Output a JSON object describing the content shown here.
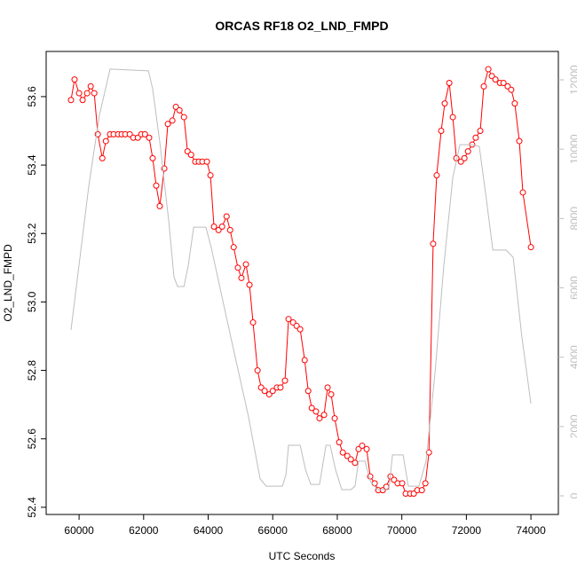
{
  "chart_data": {
    "type": "line",
    "title": "ORCAS RF18 O2_LND_FMPD",
    "xlabel": "UTC Seconds",
    "ylabel": "O2_LND_FMPD",
    "xlim": [
      58980,
      74850
    ],
    "ylim": [
      52.379,
      53.732
    ],
    "y2lim": [
      -537,
      12819
    ],
    "xticks": [
      60000,
      62000,
      64000,
      66000,
      68000,
      70000,
      72000,
      74000
    ],
    "yticks": [
      {
        "value": 52.4,
        "label": "52.4"
      },
      {
        "value": 52.6,
        "label": "52.6"
      },
      {
        "value": 52.8,
        "label": "52.8"
      },
      {
        "value": 53,
        "label": "53.0"
      },
      {
        "value": 53.2,
        "label": "53.2"
      },
      {
        "value": 53.4,
        "label": "53.4"
      },
      {
        "value": 53.6,
        "label": "53.6"
      }
    ],
    "y2ticks": [
      0,
      2000,
      4000,
      6000,
      8000,
      10000,
      12000
    ],
    "series": [
      {
        "color": "#ff0000",
        "markers": true,
        "x": [
          59750,
          59860,
          60000,
          60110,
          60250,
          60360,
          60470,
          60580,
          60720,
          60830,
          60960,
          61070,
          61210,
          61320,
          61430,
          61570,
          61680,
          61820,
          61930,
          62040,
          62170,
          62280,
          62390,
          62500,
          62640,
          62750,
          62890,
          63000,
          63110,
          63250,
          63360,
          63470,
          63600,
          63710,
          63820,
          63960,
          64070,
          64180,
          64320,
          64430,
          64570,
          64680,
          64790,
          64920,
          65030,
          65170,
          65280,
          65390,
          65530,
          65640,
          65750,
          65890,
          66000,
          66130,
          66240,
          66380,
          66490,
          66630,
          66740,
          66850,
          66990,
          67100,
          67210,
          67340,
          67450,
          67590,
          67700,
          67810,
          67920,
          68060,
          68170,
          68310,
          68420,
          68550,
          68660,
          68770,
          68910,
          69020,
          69160,
          69270,
          69410,
          69520,
          69650,
          69760,
          69870,
          70010,
          70120,
          70260,
          70370,
          70480,
          70620,
          70730,
          70840,
          70970,
          71080,
          71220,
          71330,
          71470,
          71580,
          71690,
          71830,
          71940,
          72050,
          72180,
          72290,
          72430,
          72540,
          72680,
          72790,
          72900,
          73040,
          73150,
          73280,
          73390,
          73500,
          73640,
          73750,
          74000
        ],
        "values": [
          53.59,
          53.65,
          53.61,
          53.59,
          53.61,
          53.63,
          53.61,
          53.49,
          53.42,
          53.47,
          53.49,
          53.49,
          53.49,
          53.49,
          53.49,
          53.49,
          53.48,
          53.48,
          53.49,
          53.49,
          53.48,
          53.42,
          53.34,
          53.28,
          53.39,
          53.52,
          53.53,
          53.57,
          53.56,
          53.54,
          53.44,
          53.43,
          53.41,
          53.41,
          53.41,
          53.41,
          53.37,
          53.22,
          53.21,
          53.22,
          53.25,
          53.21,
          53.16,
          53.1,
          53.07,
          53.11,
          53.05,
          52.94,
          52.8,
          52.75,
          52.74,
          52.73,
          52.74,
          52.75,
          52.75,
          52.77,
          52.95,
          52.94,
          52.93,
          52.92,
          52.83,
          52.74,
          52.69,
          52.68,
          52.66,
          52.67,
          52.75,
          52.73,
          52.66,
          52.59,
          52.56,
          52.55,
          52.54,
          52.53,
          52.57,
          52.58,
          52.57,
          52.49,
          52.47,
          52.45,
          52.45,
          52.46,
          52.49,
          52.48,
          52.47,
          52.47,
          52.44,
          52.44,
          52.44,
          52.45,
          52.45,
          52.47,
          52.56,
          53.17,
          53.37,
          53.5,
          53.58,
          53.64,
          53.54,
          53.42,
          53.41,
          53.42,
          53.44,
          53.46,
          53.48,
          53.5,
          53.63,
          53.68,
          53.66,
          53.65,
          53.64,
          53.64,
          53.63,
          53.62,
          53.58,
          53.47,
          53.32,
          53.16
        ]
      },
      {
        "color": "#bebebe",
        "axis": "y2",
        "x": [
          59750,
          60300,
          60630,
          60960,
          62150,
          62280,
          62500,
          62780,
          62940,
          63050,
          63250,
          63380,
          63550,
          63930,
          64100,
          64700,
          65250,
          65610,
          65800,
          66300,
          66410,
          66490,
          66850,
          67020,
          67180,
          67450,
          67650,
          67780,
          67950,
          68140,
          68420,
          68550,
          68660,
          68860,
          69020,
          69240,
          69600,
          69710,
          70040,
          70200,
          70530,
          70750,
          71030,
          71300,
          71580,
          71800,
          72130,
          72400,
          72620,
          72820,
          73230,
          73450,
          73720,
          74000
        ],
        "values": [
          4785,
          8930,
          10980,
          12310,
          12260,
          11740,
          10210,
          7910,
          6320,
          6040,
          6040,
          6630,
          7750,
          7750,
          7140,
          4580,
          2280,
          490,
          280,
          280,
          610,
          1460,
          1460,
          740,
          330,
          330,
          1460,
          1460,
          740,
          180,
          180,
          280,
          1000,
          1000,
          430,
          180,
          180,
          1180,
          1180,
          280,
          280,
          1000,
          3560,
          6630,
          9190,
          10130,
          10130,
          10080,
          8550,
          7090,
          7090,
          6880,
          4580,
          2660
        ]
      }
    ]
  }
}
